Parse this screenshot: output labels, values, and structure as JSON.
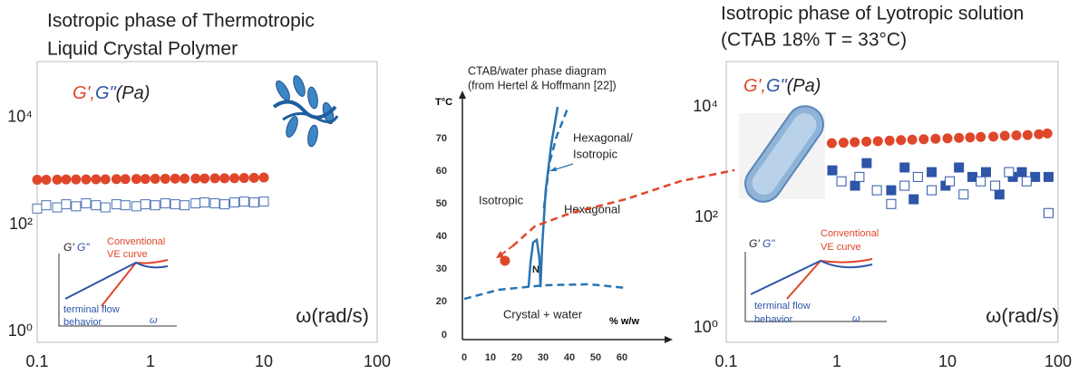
{
  "chart_data": [
    {
      "type": "scatter",
      "title": [
        "Isotropic phase of Thermotropic",
        "Liquid Crystal Polymer"
      ],
      "ylabel": "(Pa)",
      "legend_separator": ",",
      "xlabel": "ω(rad/s)",
      "xlog": true,
      "ylog": true,
      "xlim": [
        0.1,
        100
      ],
      "ylim": [
        0.63,
        112000
      ],
      "xticks": [
        0.1,
        1,
        10,
        100
      ],
      "yticks": [
        {
          "value": 1,
          "label": "10⁰"
        },
        {
          "value": 100,
          "label": "10²"
        },
        {
          "value": 10000,
          "label": "10⁴"
        }
      ],
      "series": [
        {
          "name": "G'",
          "color": "#e0462a",
          "marker": "circle",
          "filled": true,
          "x": [
            0.1,
            0.12,
            0.15,
            0.18,
            0.22,
            0.27,
            0.33,
            0.4,
            0.5,
            0.6,
            0.75,
            0.9,
            1.1,
            1.35,
            1.65,
            2,
            2.5,
            3,
            3.7,
            4.5,
            5.5,
            6.7,
            8.2,
            10
          ],
          "values": [
            690,
            690,
            695,
            700,
            700,
            700,
            705,
            705,
            710,
            710,
            715,
            715,
            720,
            720,
            725,
            725,
            730,
            730,
            735,
            735,
            740,
            745,
            750,
            760
          ]
        },
        {
          "name": "G\"",
          "color": "#4a6fb5",
          "marker": "square",
          "filled": false,
          "x": [
            0.1,
            0.12,
            0.15,
            0.18,
            0.22,
            0.27,
            0.33,
            0.4,
            0.5,
            0.6,
            0.75,
            0.9,
            1.1,
            1.35,
            1.65,
            2,
            2.5,
            3,
            3.7,
            4.5,
            5.5,
            6.7,
            8.2,
            10
          ],
          "values": [
            200,
            230,
            210,
            240,
            220,
            250,
            230,
            210,
            240,
            230,
            220,
            240,
            230,
            250,
            240,
            230,
            250,
            260,
            250,
            240,
            260,
            270,
            260,
            270
          ]
        }
      ],
      "inset": {
        "g1": "G'",
        "g2": "G\"",
        "red_curve": [
          "Conventional",
          "VE curve"
        ],
        "blue_curve": [
          "terminal flow",
          "behavior"
        ],
        "x": "ω"
      }
    },
    {
      "type": "line",
      "title": [
        "CTAB/water phase diagram",
        "(from Hertel & Hoffmann [22])"
      ],
      "xlabel": "% w/w",
      "ylabel": "T°C",
      "y_origin_label": "0",
      "xlim": [
        0,
        78
      ],
      "ylim": [
        8.3,
        84
      ],
      "xticks": [
        0,
        10,
        20,
        30,
        40,
        50,
        60
      ],
      "yticks": [
        20,
        30,
        40,
        50,
        60,
        70
      ],
      "annotations": {
        "isotropic": "Isotropic",
        "hexagonal": "Hexagonal",
        "coexist": [
          "Hexagonal/",
          "Isotropic"
        ],
        "nematic": "N",
        "crystal": "Crystal + water"
      },
      "series": [
        {
          "color": "#2a73b0",
          "dashed": false,
          "x": [
            24.5,
            25.2,
            26.2,
            27.6,
            28.6,
            29.0
          ],
          "values": [
            24.4,
            31.9,
            38.1,
            38.9,
            33.3,
            24.4
          ]
        },
        {
          "color": "#2a73b0",
          "dashed": false,
          "x": [
            29.0,
            29.7,
            31.0,
            33.1,
            35.5
          ],
          "values": [
            24.4,
            37.5,
            54.2,
            68.1,
            79.7
          ]
        },
        {
          "color": "#2a73b0",
          "dashed": true,
          "x": [
            30.3,
            32.4,
            35.2,
            39.3
          ],
          "values": [
            48.6,
            62.5,
            70.8,
            79.2
          ]
        },
        {
          "color": "#2a73b0",
          "dashed": true,
          "x": [
            0,
            13.1,
            30.3,
            47.6,
            61.4
          ],
          "values": [
            20.8,
            23.6,
            25.0,
            25.3,
            24.2
          ]
        },
        {
          "color": "#e0462a",
          "dashed": true,
          "x": [
            18.3,
            26.9,
            40.7,
            61.4,
            82.1,
            102.8
          ],
          "values": [
            36.9,
            43.1,
            47.2,
            51.4,
            56.9,
            60.3
          ]
        },
        {
          "color": "#e0462a",
          "marker": "circle",
          "filled": true,
          "x": [
            15.5
          ],
          "values": [
            32.5
          ]
        }
      ]
    },
    {
      "type": "scatter",
      "title": [
        "Isotropic phase of  Lyotropic solution",
        "(CTAB 18% T = 33°C)"
      ],
      "ylabel": "(Pa)",
      "legend_separator": ",",
      "xlabel": "ω(rad/s)",
      "xlog": true,
      "ylog": true,
      "xlim": [
        0.1,
        100
      ],
      "ylim": [
        0.55,
        66000
      ],
      "xticks": [
        0.1,
        1,
        10,
        100
      ],
      "yticks": [
        {
          "value": 1,
          "label": "10⁰"
        },
        {
          "value": 100,
          "label": "10²"
        },
        {
          "value": 10000,
          "label": "10⁴"
        }
      ],
      "series": [
        {
          "name": "G'",
          "color": "#e0462a",
          "marker": "circle",
          "filled": true,
          "x": [
            0.9,
            1.15,
            1.45,
            1.85,
            2.35,
            3,
            3.8,
            4.8,
            6.1,
            7.8,
            10,
            12.7,
            16,
            20,
            26,
            33,
            42,
            53,
            67,
            80
          ],
          "values": [
            2200,
            2250,
            2300,
            2350,
            2400,
            2450,
            2500,
            2550,
            2600,
            2650,
            2700,
            2750,
            2800,
            2850,
            2900,
            3000,
            3050,
            3100,
            3200,
            3300
          ]
        },
        {
          "name": "G\"",
          "color": "#2e55a8",
          "marker": "square",
          "filled": true,
          "x": [
            0.91,
            1.46,
            1.86,
            3.1,
            4.1,
            4.95,
            7.2,
            9.6,
            12.7,
            16.8,
            22.3,
            29.5,
            39,
            47,
            62,
            82
          ],
          "values": [
            710,
            375,
            960,
            310,
            800,
            213,
            660,
            375,
            800,
            540,
            660,
            260,
            540,
            660,
            540,
            540
          ]
        },
        {
          "color": "#2e55a8",
          "marker": "square",
          "filled": false,
          "x": [
            1.1,
            1.6,
            2.3,
            3.1,
            4.1,
            5.4,
            7.2,
            10.5,
            14,
            20,
            27,
            36,
            52,
            82
          ],
          "values": [
            450,
            540,
            310,
            175,
            375,
            540,
            310,
            450,
            260,
            450,
            375,
            660,
            450,
            120
          ]
        }
      ],
      "inset": {
        "g1": "G'",
        "g2": "G\"",
        "red_curve": [
          "Conventional",
          "VE curve"
        ],
        "blue_curve": [
          "terminal flow",
          "behavior"
        ],
        "x": "ω"
      }
    }
  ]
}
